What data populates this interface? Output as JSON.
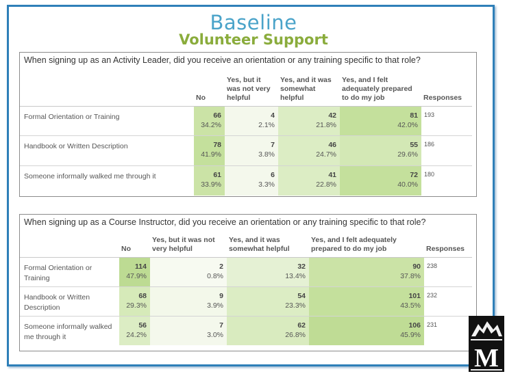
{
  "slide": {
    "title": "Baseline",
    "subtitle": "Volunteer Support"
  },
  "table1": {
    "question": "When signing up as an Activity Leader, did you receive an orientation or any training specific to that role?",
    "headers": [
      "No",
      "Yes, but it was not very helpful",
      "Yes, and it was somewhat helpful",
      "Yes, and I felt adequately prepared to do my job",
      "Responses"
    ],
    "rows": [
      {
        "label": "Formal Orientation or Training",
        "cells": [
          {
            "n": "66",
            "p": "34.2%"
          },
          {
            "n": "4",
            "p": "2.1%"
          },
          {
            "n": "42",
            "p": "21.8%"
          },
          {
            "n": "81",
            "p": "42.0%"
          }
        ],
        "responses": "193"
      },
      {
        "label": "Handbook or Written Description",
        "cells": [
          {
            "n": "78",
            "p": "41.9%"
          },
          {
            "n": "7",
            "p": "3.8%"
          },
          {
            "n": "46",
            "p": "24.7%"
          },
          {
            "n": "55",
            "p": "29.6%"
          }
        ],
        "responses": "186"
      },
      {
        "label": "Someone informally walked me through it",
        "cells": [
          {
            "n": "61",
            "p": "33.9%"
          },
          {
            "n": "6",
            "p": "3.3%"
          },
          {
            "n": "41",
            "p": "22.8%"
          },
          {
            "n": "72",
            "p": "40.0%"
          }
        ],
        "responses": "180"
      }
    ]
  },
  "table2": {
    "question": "When signing up as a Course Instructor, did you receive an orientation or any training specific to that role?",
    "headers": [
      "No",
      "Yes, but it was not very helpful",
      "Yes, and it was somewhat helpful",
      "Yes, and I felt adequately prepared to do my job",
      "Responses"
    ],
    "rows": [
      {
        "label": "Formal Orientation or Training",
        "cells": [
          {
            "n": "114",
            "p": "47.9%"
          },
          {
            "n": "2",
            "p": "0.8%"
          },
          {
            "n": "32",
            "p": "13.4%"
          },
          {
            "n": "90",
            "p": "37.8%"
          }
        ],
        "responses": "238"
      },
      {
        "label": "Handbook or Written Description",
        "cells": [
          {
            "n": "68",
            "p": "29.3%"
          },
          {
            "n": "9",
            "p": "3.9%"
          },
          {
            "n": "54",
            "p": "23.3%"
          },
          {
            "n": "101",
            "p": "43.5%"
          }
        ],
        "responses": "232"
      },
      {
        "label": "Someone informally walked me through it",
        "cells": [
          {
            "n": "56",
            "p": "24.2%"
          },
          {
            "n": "7",
            "p": "3.0%"
          },
          {
            "n": "62",
            "p": "26.8%"
          },
          {
            "n": "106",
            "p": "45.9%"
          }
        ],
        "responses": "231"
      }
    ]
  },
  "logo": {
    "letter": "M",
    "icon": "mountain-logo-icon"
  },
  "colors": {
    "frame": "#2e7fb8",
    "title": "#4aa3c9",
    "subtitle": "#8aac3c",
    "logo_bg": "#111111"
  }
}
